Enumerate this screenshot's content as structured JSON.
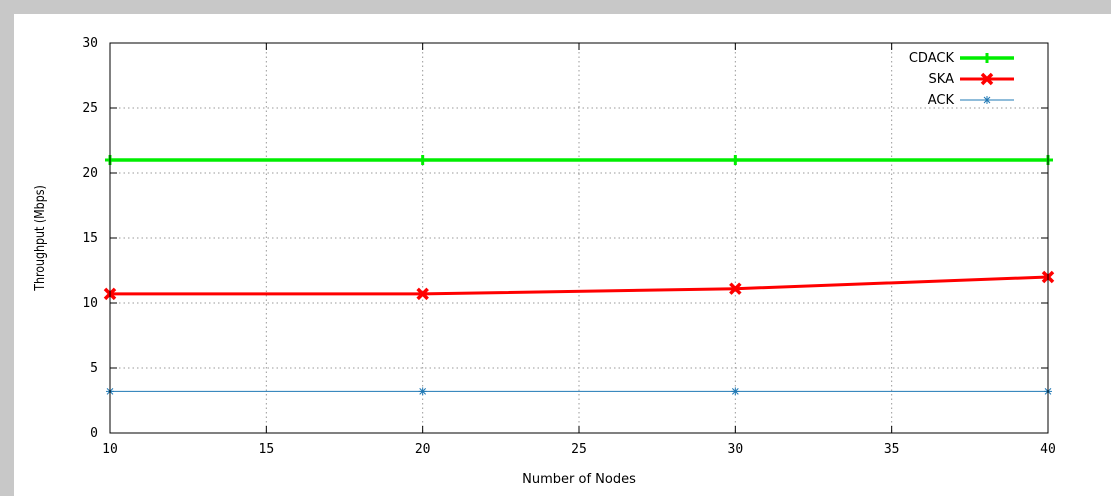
{
  "chart_data": {
    "type": "line",
    "title": "",
    "xlabel": "Number of Nodes",
    "ylabel": "Throughput (Mbps)",
    "xlim": [
      10,
      40
    ],
    "ylim": [
      0,
      30
    ],
    "x_ticks": [
      10,
      15,
      20,
      25,
      30,
      35,
      40
    ],
    "y_ticks": [
      0,
      5,
      10,
      15,
      20,
      25,
      30
    ],
    "grid": true,
    "legend_position": "top-right",
    "x": [
      10,
      20,
      30,
      40
    ],
    "series": [
      {
        "name": "CDACK",
        "values": [
          21,
          21,
          21,
          21
        ],
        "color": "#00ee00",
        "marker": "plus"
      },
      {
        "name": "SKA",
        "values": [
          10.7,
          10.7,
          11.1,
          12.0
        ],
        "color": "#ff0000",
        "marker": "cross"
      },
      {
        "name": "ACK",
        "values": [
          3.2,
          3.2,
          3.2,
          3.2
        ],
        "color": "#1f78b4",
        "marker": "star"
      }
    ]
  }
}
